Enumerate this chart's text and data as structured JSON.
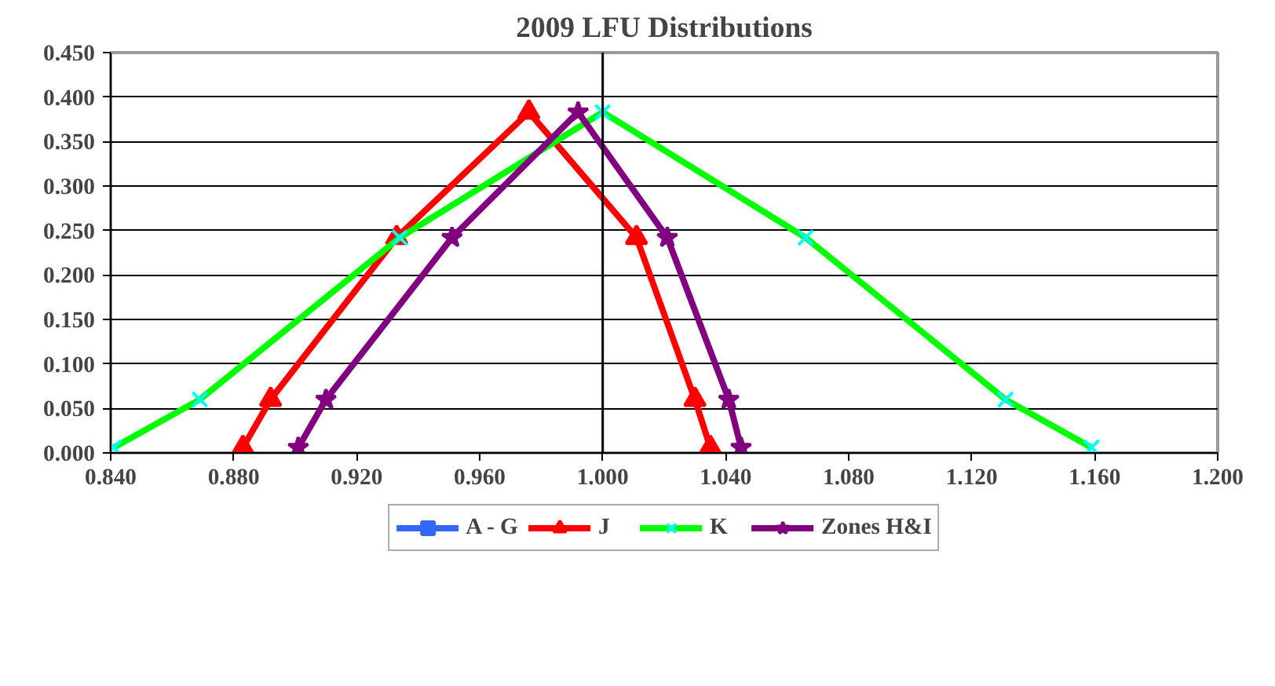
{
  "chart_data": {
    "type": "line",
    "title": "2009 LFU Distributions",
    "xlim": [
      0.84,
      1.2
    ],
    "xticks": [
      {
        "value": 0.84,
        "label": "0.840"
      },
      {
        "value": 0.88,
        "label": "0.880"
      },
      {
        "value": 0.92,
        "label": "0.920"
      },
      {
        "value": 0.96,
        "label": "0.960"
      },
      {
        "value": 1.0,
        "label": "1.000"
      },
      {
        "value": 1.04,
        "label": "1.040"
      },
      {
        "value": 1.08,
        "label": "1.080"
      },
      {
        "value": 1.12,
        "label": "1.120"
      },
      {
        "value": 1.16,
        "label": "1.160"
      },
      {
        "value": 1.2,
        "label": "1.200"
      }
    ],
    "ylim": [
      0,
      0.45
    ],
    "yticks": [
      {
        "value": 0,
        "label": "0.000"
      },
      {
        "value": 0.05,
        "label": "0.050"
      },
      {
        "value": 0.1,
        "label": "0.100"
      },
      {
        "value": 0.15,
        "label": "0.150"
      },
      {
        "value": 0.2,
        "label": "0.200"
      },
      {
        "value": 0.25,
        "label": "0.250"
      },
      {
        "value": 0.3,
        "label": "0.300"
      },
      {
        "value": 0.35,
        "label": "0.350"
      },
      {
        "value": 0.4,
        "label": "0.400"
      },
      {
        "value": 0.45,
        "label": "0.450"
      }
    ],
    "grid": "y",
    "legend": "bottom",
    "ref_lines": [
      {
        "axis": "x",
        "value": 1.0,
        "label": null,
        "color": "#000000"
      }
    ],
    "series": [
      {
        "name": "A - G",
        "color": "#3366ff",
        "marker": "square"
      },
      {
        "name": "J",
        "color": "#ff0000",
        "marker": "triangle",
        "x": [
          0.883,
          0.892,
          0.933,
          0.976,
          1.011,
          1.03,
          1.035
        ],
        "values": [
          0.006,
          0.06,
          0.242,
          0.383,
          0.242,
          0.06,
          0.006
        ]
      },
      {
        "name": "K",
        "color": "#00ff00",
        "marker": "cross",
        "x": [
          0.841,
          0.869,
          0.934,
          1.0,
          1.066,
          1.131,
          1.159
        ],
        "values": [
          0.006,
          0.06,
          0.242,
          0.383,
          0.242,
          0.06,
          0.006
        ]
      },
      {
        "name": "Zones H&I",
        "color": "#800080",
        "marker": "star",
        "x": [
          0.901,
          0.91,
          0.951,
          0.992,
          1.021,
          1.041,
          1.045
        ],
        "values": [
          0.006,
          0.06,
          0.242,
          0.383,
          0.242,
          0.06,
          0.006
        ]
      }
    ]
  }
}
